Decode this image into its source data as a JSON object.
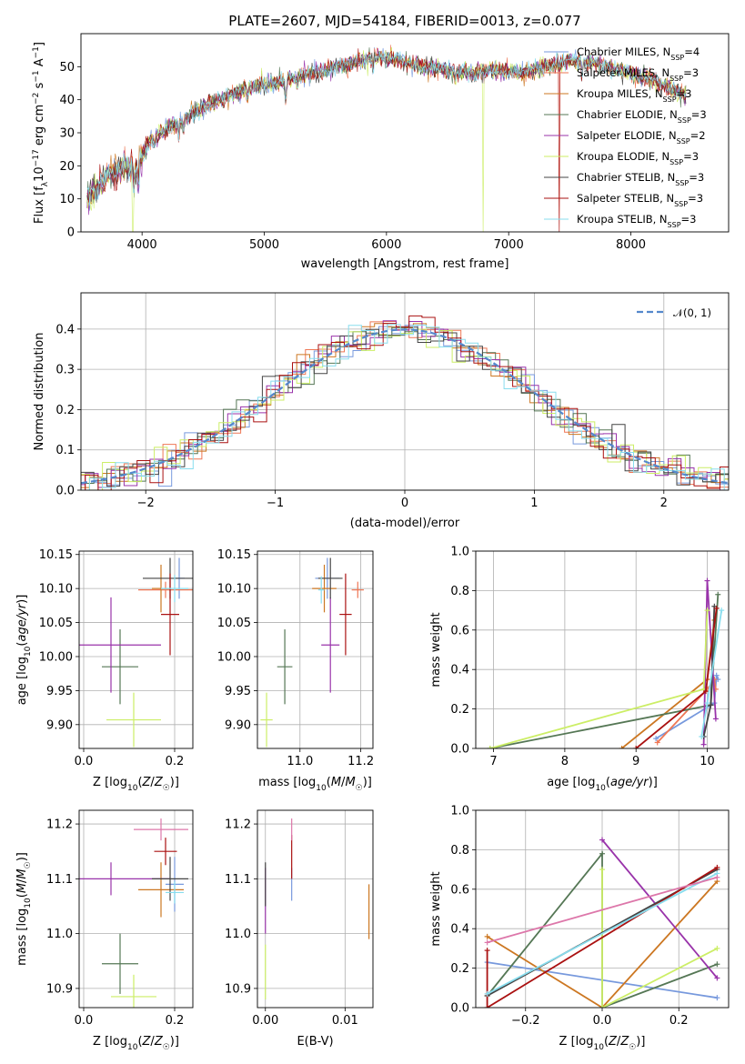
{
  "figure_title": "PLATE=2607, MJD=54184, FIBERID=0013, z=0.077",
  "colors": {
    "Chabrier MILES": "#7799dd",
    "Salpeter MILES": "#ee7755",
    "Kroupa MILES": "#cc7722",
    "Chabrier ELODIE": "#557755",
    "Salpeter ELODIE": "#9933aa",
    "Kroupa ELODIE": "#ccee66",
    "Chabrier STELIB": "#444444",
    "Salpeter STELIB": "#aa1111",
    "Kroupa STELIB": "#88ddee",
    "gaussian": "#5588cc",
    "pink": "#dd77aa",
    "grid": "#b0b0b0"
  },
  "chart_data": [
    {
      "id": "spectrum",
      "type": "line",
      "title": "PLATE=2607, MJD=54184, FIBERID=0013, z=0.077",
      "xlabel": "wavelength [Angstrom, rest frame]",
      "ylabel": "Flux [fλ10⁻¹⁷ erg cm⁻² s⁻¹ A⁻¹]",
      "xlim": [
        3500,
        8800
      ],
      "ylim": [
        0,
        60
      ],
      "xticks": [
        4000,
        5000,
        6000,
        7000,
        8000
      ],
      "yticks": [
        0,
        10,
        20,
        30,
        40,
        50
      ],
      "grid": false,
      "legend_position": "top-right",
      "continuum": {
        "x": [
          3550,
          3650,
          3750,
          3850,
          3950,
          4050,
          4150,
          4300,
          4500,
          4700,
          4900,
          5100,
          5300,
          5500,
          5700,
          5900,
          6100,
          6300,
          6500,
          6700,
          6900,
          7100,
          7300,
          7500,
          7700,
          7900,
          8100,
          8300,
          8450
        ],
        "y": [
          11,
          14,
          18,
          20,
          19,
          27,
          30,
          33,
          38,
          41,
          44,
          45,
          47,
          49,
          51,
          53,
          52,
          50,
          49,
          48,
          49,
          48,
          50,
          52,
          51,
          49,
          47,
          44,
          41
        ]
      },
      "legend": [
        {
          "model": "Chabrier MILES",
          "n_ssp": "4"
        },
        {
          "model": "Salpeter MILES",
          "n_ssp": "3"
        },
        {
          "model": "Kroupa MILES",
          "n_ssp": "3"
        },
        {
          "model": "Chabrier ELODIE",
          "n_ssp": "3"
        },
        {
          "model": "Salpeter ELODIE",
          "n_ssp": "2"
        },
        {
          "model": "Kroupa ELODIE",
          "n_ssp": "3"
        },
        {
          "model": "Chabrier STELIB",
          "n_ssp": "3"
        },
        {
          "model": "Salpeter STELIB",
          "n_ssp": "3"
        },
        {
          "model": "Kroupa STELIB",
          "n_ssp": "3"
        }
      ]
    },
    {
      "id": "residuals",
      "type": "line",
      "xlabel": "(data-model)/error",
      "ylabel": "Normed distribution",
      "xlim": [
        -2.5,
        2.5
      ],
      "ylim": [
        0,
        0.49
      ],
      "xticks": [
        -2,
        -1,
        0,
        1,
        2
      ],
      "yticks": [
        0.0,
        0.1,
        0.2,
        0.3,
        0.4
      ],
      "grid": true,
      "legend": "𝒩(0, 1)",
      "legend_position": "top-right",
      "bin_width": 0.1
    },
    {
      "id": "age_vs_Z",
      "type": "scatter",
      "xlabel": "Z [log₁₀(Z/Z☉)]",
      "ylabel": "age  [log₁₀(age/yr)]",
      "xlim": [
        -0.01,
        0.24
      ],
      "ylim": [
        9.865,
        10.155
      ],
      "xticks": [
        0.0,
        0.2
      ],
      "yticks": [
        9.9,
        9.95,
        10.0,
        10.05,
        10.1,
        10.15
      ],
      "grid": true,
      "points": [
        {
          "model": "Chabrier MILES",
          "x": 0.21,
          "xerr": 0.012,
          "y": 10.115,
          "yerr": 0.03
        },
        {
          "model": "Salpeter MILES",
          "x": 0.18,
          "xerr": 0.06,
          "y": 10.098,
          "yerr": 0.012
        },
        {
          "model": "Kroupa MILES",
          "x": 0.17,
          "xerr": 0.02,
          "y": 10.1,
          "yerr": 0.035
        },
        {
          "model": "Chabrier ELODIE",
          "x": 0.08,
          "xerr": 0.04,
          "y": 9.985,
          "yerr": 0.055
        },
        {
          "model": "Salpeter ELODIE",
          "x": 0.06,
          "xerr": 0.11,
          "y": 10.017,
          "yerr": 0.07
        },
        {
          "model": "Kroupa ELODIE",
          "x": 0.11,
          "xerr": 0.06,
          "y": 9.907,
          "yerr": 0.04
        },
        {
          "model": "Chabrier STELIB",
          "x": 0.19,
          "xerr": 0.06,
          "y": 10.115,
          "yerr": 0.03
        },
        {
          "model": "Salpeter STELIB",
          "x": 0.19,
          "xerr": 0.02,
          "y": 10.062,
          "yerr": 0.06
        },
        {
          "model": "Kroupa STELIB",
          "x": 0.2,
          "xerr": 0.03,
          "y": 10.1,
          "yerr": 0.02
        }
      ]
    },
    {
      "id": "age_vs_mass",
      "type": "scatter",
      "xlabel": "mass [log₁₀(M/M☉)]",
      "ylabel": "",
      "xlim": [
        10.86,
        11.24
      ],
      "ylim": [
        9.865,
        10.155
      ],
      "xticks": [
        11.0,
        11.2
      ],
      "yticks": [
        9.9,
        9.95,
        10.0,
        10.05,
        10.1,
        10.15
      ],
      "grid": true,
      "points": [
        {
          "model": "Chabrier MILES",
          "x": 11.09,
          "xerr": 0.04,
          "y": 10.115,
          "yerr": 0.03
        },
        {
          "model": "Salpeter MILES",
          "x": 11.19,
          "xerr": 0.02,
          "y": 10.098,
          "yerr": 0.012
        },
        {
          "model": "Kroupa MILES",
          "x": 11.08,
          "xerr": 0.04,
          "y": 10.1,
          "yerr": 0.035
        },
        {
          "model": "Chabrier ELODIE",
          "x": 10.95,
          "xerr": 0.025,
          "y": 9.985,
          "yerr": 0.055
        },
        {
          "model": "Salpeter ELODIE",
          "x": 11.1,
          "xerr": 0.03,
          "y": 10.017,
          "yerr": 0.07
        },
        {
          "model": "Kroupa ELODIE",
          "x": 10.89,
          "xerr": 0.02,
          "y": 9.907,
          "yerr": 0.04
        },
        {
          "model": "Chabrier STELIB",
          "x": 11.1,
          "xerr": 0.04,
          "y": 10.115,
          "yerr": 0.03
        },
        {
          "model": "Salpeter STELIB",
          "x": 11.15,
          "xerr": 0.02,
          "y": 10.062,
          "yerr": 0.06
        },
        {
          "model": "Kroupa STELIB",
          "x": 11.07,
          "xerr": 0.01,
          "y": 10.098,
          "yerr": 0.02
        }
      ]
    },
    {
      "id": "weight_vs_age",
      "type": "line",
      "xlabel": "age  [log₁₀(age/yr)]",
      "ylabel": "mass weight",
      "xlim": [
        6.75,
        10.3
      ],
      "ylim": [
        0,
        1.0
      ],
      "xticks": [
        7,
        8,
        9,
        10
      ],
      "yticks": [
        0.0,
        0.2,
        0.4,
        0.6,
        0.8,
        1.0
      ],
      "grid": true,
      "series": [
        {
          "model": "Chabrier MILES",
          "x": [
            9.28,
            10.1,
            10.13,
            10.15
          ],
          "y": [
            0.05,
            0.23,
            0.37,
            0.35
          ]
        },
        {
          "model": "Salpeter MILES",
          "x": [
            9.3,
            10.0,
            10.1,
            10.12
          ],
          "y": [
            0.03,
            0.3,
            0.35,
            0.3
          ]
        },
        {
          "model": "Kroupa MILES",
          "x": [
            8.8,
            10.0,
            10.1
          ],
          "y": [
            0.0,
            0.35,
            0.65
          ]
        },
        {
          "model": "Chabrier ELODIE",
          "x": [
            6.95,
            10.05,
            10.15
          ],
          "y": [
            0.0,
            0.22,
            0.78
          ]
        },
        {
          "model": "Salpeter ELODIE",
          "x": [
            9.95,
            10.0,
            10.12
          ],
          "y": [
            0.02,
            0.85,
            0.15
          ]
        },
        {
          "model": "Kroupa ELODIE",
          "x": [
            6.95,
            9.95,
            10.0
          ],
          "y": [
            0.0,
            0.3,
            0.7
          ]
        },
        {
          "model": "Chabrier STELIB",
          "x": [
            9.95,
            10.05,
            10.1
          ],
          "y": [
            0.06,
            0.22,
            0.72
          ]
        },
        {
          "model": "Salpeter STELIB",
          "x": [
            9.0,
            9.98,
            10.13
          ],
          "y": [
            0.0,
            0.29,
            0.71
          ]
        },
        {
          "model": "Kroupa STELIB",
          "x": [
            9.92,
            10.0,
            10.2
          ],
          "y": [
            0.06,
            0.23,
            0.7
          ]
        }
      ]
    },
    {
      "id": "mass_vs_Z",
      "type": "scatter",
      "xlabel": "Z [log₁₀(Z/Z☉)]",
      "ylabel": "mass [log₁₀(M/M☉)]",
      "xlim": [
        -0.01,
        0.24
      ],
      "ylim": [
        10.865,
        11.225
      ],
      "xticks": [
        0.0,
        0.2
      ],
      "yticks": [
        10.9,
        11.0,
        11.1,
        11.2
      ],
      "grid": true,
      "points": [
        {
          "model": "Chabrier MILES",
          "x": 0.2,
          "xerr": 0.02,
          "y": 11.09,
          "yerr": 0.05
        },
        {
          "model": "Kroupa MILES",
          "x": 0.17,
          "xerr": 0.05,
          "y": 11.08,
          "yerr": 0.05
        },
        {
          "model": "Chabrier ELODIE",
          "x": 0.08,
          "xerr": 0.04,
          "y": 10.945,
          "yerr": 0.055
        },
        {
          "model": "Salpeter ELODIE",
          "x": 0.06,
          "xerr": 0.13,
          "y": 11.1,
          "yerr": 0.03
        },
        {
          "model": "Kroupa ELODIE",
          "x": 0.11,
          "xerr": 0.05,
          "y": 10.885,
          "yerr": 0.04
        },
        {
          "model": "Chabrier STELIB",
          "x": 0.19,
          "xerr": 0.04,
          "y": 11.1,
          "yerr": 0.04
        },
        {
          "model": "Salpeter STELIB",
          "x": 0.18,
          "xerr": 0.025,
          "y": 11.15,
          "yerr": 0.025
        },
        {
          "model": "Kroupa STELIB",
          "x": 0.2,
          "xerr": 0.02,
          "y": 11.075,
          "yerr": 0.02
        },
        {
          "model": "pink",
          "x": 0.17,
          "xerr": 0.06,
          "y": 11.19,
          "yerr": 0.02
        }
      ]
    },
    {
      "id": "mass_vs_ebv",
      "type": "scatter",
      "xlabel": "E(B-V)",
      "ylabel": "",
      "xlim": [
        -0.001,
        0.0135
      ],
      "ylim": [
        10.865,
        11.225
      ],
      "xticks": [
        0.0,
        0.01
      ],
      "yticks": [
        10.9,
        11.0,
        11.1,
        11.2
      ],
      "grid": true,
      "points": [
        {
          "model": "Chabrier MILES",
          "x": 0.0033,
          "xerr": 0,
          "y": 11.09,
          "yerr": 0.03
        },
        {
          "model": "Kroupa MILES",
          "x": 0.013,
          "xerr": 0,
          "y": 11.04,
          "yerr": 0.05
        },
        {
          "model": "Salpeter ELODIE",
          "x": 0.0,
          "xerr": 0,
          "y": 11.06,
          "yerr": 0.06
        },
        {
          "model": "Kroupa ELODIE",
          "x": 0.0,
          "xerr": 0,
          "y": 10.93,
          "yerr": 0.05
        },
        {
          "model": "Salpeter STELIB",
          "x": 0.0033,
          "xerr": 0,
          "y": 11.14,
          "yerr": 0.04
        },
        {
          "model": "pink",
          "x": 0.0033,
          "xerr": 0,
          "y": 11.19,
          "yerr": 0.02
        },
        {
          "model": "Chabrier STELIB",
          "x": 0.0,
          "xerr": 0,
          "y": 11.09,
          "yerr": 0.04
        }
      ]
    },
    {
      "id": "weight_vs_Z",
      "type": "line",
      "xlabel": "Z [log₁₀(Z/Z☉)]",
      "ylabel": "mass weight",
      "xlim": [
        -0.33,
        0.33
      ],
      "ylim": [
        0,
        1.0
      ],
      "xticks": [
        -0.2,
        0.0,
        0.2
      ],
      "yticks": [
        0.0,
        0.2,
        0.4,
        0.6,
        0.8,
        1.0
      ],
      "grid": true,
      "series": [
        {
          "model": "Chabrier MILES",
          "x": [
            -0.3,
            0.3
          ],
          "y": [
            0.23,
            0.05
          ]
        },
        {
          "model": "Kroupa MILES",
          "x": [
            -0.3,
            0.0,
            0.3
          ],
          "y": [
            0.36,
            0.0,
            0.64
          ]
        },
        {
          "model": "Chabrier ELODIE",
          "x": [
            -0.3,
            0.0,
            0.0,
            0.3
          ],
          "y": [
            0.06,
            0.78,
            0.0,
            0.22
          ]
        },
        {
          "model": "Salpeter ELODIE",
          "x": [
            0.0,
            0.3
          ],
          "y": [
            0.85,
            0.15
          ]
        },
        {
          "model": "Kroupa ELODIE",
          "x": [
            0.0,
            0.0,
            0.3
          ],
          "y": [
            0.7,
            0.0,
            0.3
          ]
        },
        {
          "model": "Chabrier STELIB",
          "x": [
            -0.3,
            0.3
          ],
          "y": [
            0.06,
            0.7
          ]
        },
        {
          "model": "Salpeter STELIB",
          "x": [
            -0.3,
            -0.3,
            0.3
          ],
          "y": [
            0.29,
            0.0,
            0.71
          ]
        },
        {
          "model": "Kroupa STELIB",
          "x": [
            -0.3,
            0.3
          ],
          "y": [
            0.07,
            0.68
          ]
        },
        {
          "model": "pink",
          "x": [
            -0.3,
            0.3
          ],
          "y": [
            0.33,
            0.66
          ]
        }
      ]
    }
  ]
}
